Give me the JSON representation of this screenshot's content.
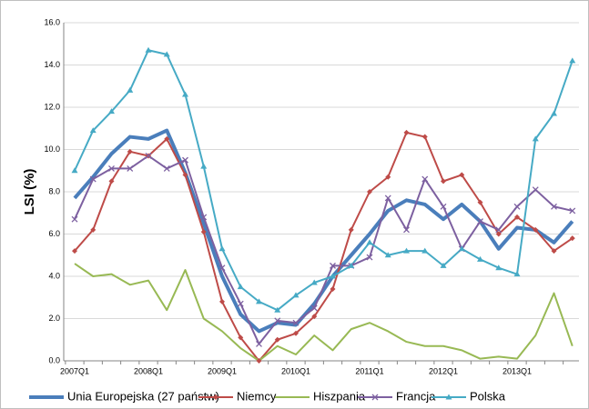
{
  "chart_data": {
    "type": "line",
    "ylabel": "LSI (%)",
    "categories": [
      "2007Q1",
      null,
      null,
      null,
      "2008Q1",
      null,
      null,
      null,
      "2009Q1",
      null,
      null,
      null,
      "2010Q1",
      null,
      null,
      null,
      "2011Q1",
      null,
      null,
      null,
      "2012Q1",
      null,
      null,
      null,
      "2013Q1",
      null,
      null,
      null
    ],
    "ylim": [
      0,
      16
    ],
    "yticks": [
      {
        "value": 0,
        "label": "0.0"
      },
      {
        "value": 2,
        "label": "2.0"
      },
      {
        "value": 4,
        "label": "4.0"
      },
      {
        "value": 6,
        "label": "6.0"
      },
      {
        "value": 8,
        "label": "8.0"
      },
      {
        "value": 10,
        "label": "10.0"
      },
      {
        "value": 12,
        "label": "12.0"
      },
      {
        "value": 14,
        "label": "14.0"
      },
      {
        "value": 16,
        "label": "16.0"
      }
    ],
    "grid": true,
    "legend": "bottom",
    "series": [
      {
        "name": "Unia Europejska (27 państw)",
        "color": "#4a7ebb",
        "marker": "none",
        "values": [
          7.7,
          8.7,
          9.8,
          10.6,
          10.5,
          10.9,
          8.9,
          6.5,
          4.0,
          2.2,
          1.4,
          1.8,
          1.7,
          2.7,
          4.0,
          5.0,
          6.0,
          7.1,
          7.6,
          7.4,
          6.7,
          7.4,
          6.6,
          5.3,
          6.3,
          6.2,
          5.6,
          6.6
        ]
      },
      {
        "name": "Niemcy",
        "color": "#be4b48",
        "marker": "diamond",
        "values": [
          5.2,
          6.2,
          8.5,
          9.9,
          9.7,
          10.5,
          8.8,
          6.1,
          2.8,
          1.1,
          0.0,
          1.0,
          1.3,
          2.1,
          3.4,
          6.2,
          8.0,
          8.7,
          10.8,
          10.6,
          8.5,
          8.8,
          7.5,
          6.0,
          6.8,
          6.2,
          5.2,
          5.8
        ]
      },
      {
        "name": "Hiszpania",
        "color": "#98b954",
        "marker": "none",
        "values": [
          4.6,
          4.0,
          4.1,
          3.6,
          3.8,
          2.4,
          4.3,
          2.0,
          1.4,
          0.6,
          0.0,
          0.7,
          0.3,
          1.2,
          0.5,
          1.5,
          1.8,
          1.4,
          0.9,
          0.7,
          0.7,
          0.5,
          0.1,
          0.2,
          0.1,
          1.2,
          3.2,
          0.7
        ]
      },
      {
        "name": "Francja",
        "color": "#7d60a0",
        "marker": "x",
        "values": [
          6.7,
          8.6,
          9.1,
          9.1,
          9.7,
          9.1,
          9.5,
          6.8,
          4.4,
          2.7,
          0.8,
          1.9,
          1.8,
          2.5,
          4.5,
          4.5,
          4.9,
          7.7,
          6.2,
          8.6,
          7.3,
          5.3,
          6.6,
          6.2,
          7.3,
          8.1,
          7.3,
          7.1
        ]
      },
      {
        "name": "Polska",
        "color": "#46aac5",
        "marker": "triangle",
        "values": [
          9.0,
          10.9,
          11.8,
          12.8,
          14.7,
          14.5,
          12.6,
          9.2,
          5.3,
          3.5,
          2.8,
          2.4,
          3.1,
          3.7,
          4.0,
          4.5,
          5.6,
          5.0,
          5.2,
          5.2,
          4.5,
          5.3,
          4.8,
          4.4,
          4.1,
          10.5,
          11.7,
          14.2
        ]
      }
    ]
  }
}
